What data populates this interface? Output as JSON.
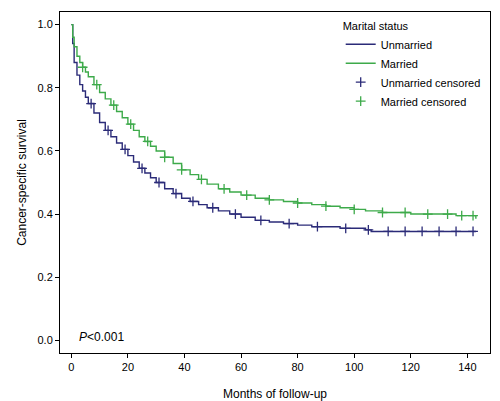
{
  "chart_data": {
    "type": "line",
    "x_label": "Months of follow-up",
    "y_label": "Cancer-specific survival",
    "legend_title": "Marital status",
    "legend": "top right",
    "grid": false,
    "xlim": [
      -4,
      148
    ],
    "xticks": [
      0,
      20,
      40,
      60,
      80,
      100,
      120,
      140
    ],
    "ylim": [
      -0.04,
      1.04
    ],
    "yticks": [
      {
        "value": 0,
        "label": "0.0"
      },
      0.2,
      0.4,
      0.6,
      0.8,
      {
        "value": 1,
        "label": "1.0"
      }
    ],
    "annotations": [
      {
        "text": "P<0.001"
      }
    ],
    "series": [
      {
        "name": "Unmarried",
        "type": "line",
        "line_style": "step",
        "color": "#2b2b78",
        "x": [
          0,
          0.5,
          1,
          2,
          3,
          4,
          5,
          6,
          8,
          10,
          12,
          14,
          16,
          18,
          20,
          22,
          24,
          26,
          28,
          30,
          33,
          36,
          39,
          42,
          45,
          48,
          52,
          56,
          60,
          65,
          70,
          75,
          80,
          85,
          90,
          95,
          100,
          104,
          106,
          110,
          120,
          130,
          143
        ],
        "values": [
          1.0,
          0.94,
          0.88,
          0.84,
          0.81,
          0.79,
          0.77,
          0.75,
          0.72,
          0.69,
          0.665,
          0.645,
          0.625,
          0.605,
          0.585,
          0.565,
          0.545,
          0.53,
          0.515,
          0.5,
          0.48,
          0.465,
          0.45,
          0.44,
          0.43,
          0.42,
          0.41,
          0.4,
          0.39,
          0.38,
          0.375,
          0.37,
          0.365,
          0.36,
          0.36,
          0.355,
          0.355,
          0.35,
          0.345,
          0.345,
          0.345,
          0.345,
          0.345
        ]
      },
      {
        "name": "Married",
        "type": "line",
        "line_style": "step",
        "color": "#3daa4a",
        "x": [
          0,
          0.5,
          1,
          2,
          3,
          4,
          5,
          6,
          8,
          10,
          12,
          14,
          16,
          18,
          20,
          22,
          24,
          26,
          28,
          30,
          33,
          36,
          39,
          42,
          45,
          48,
          52,
          56,
          60,
          65,
          70,
          75,
          80,
          85,
          90,
          95,
          100,
          104,
          106,
          110,
          120,
          136,
          143
        ],
        "values": [
          1.0,
          0.96,
          0.93,
          0.9,
          0.88,
          0.865,
          0.85,
          0.835,
          0.81,
          0.785,
          0.765,
          0.745,
          0.725,
          0.705,
          0.685,
          0.665,
          0.645,
          0.63,
          0.615,
          0.6,
          0.58,
          0.56,
          0.54,
          0.525,
          0.51,
          0.495,
          0.48,
          0.47,
          0.46,
          0.45,
          0.445,
          0.44,
          0.435,
          0.43,
          0.425,
          0.42,
          0.415,
          0.41,
          0.41,
          0.405,
          0.4,
          0.395,
          0.385
        ]
      },
      {
        "name": "Unmarried censored",
        "type": "scatter",
        "marker": "cross",
        "color": "#2b2b78",
        "x": [
          7,
          13,
          19,
          25,
          31,
          37,
          43,
          50,
          58,
          67,
          77,
          87,
          97,
          105,
          112,
          118,
          124,
          130,
          136,
          142
        ],
        "values": [
          0.75,
          0.665,
          0.605,
          0.545,
          0.5,
          0.465,
          0.44,
          0.42,
          0.4,
          0.38,
          0.37,
          0.36,
          0.355,
          0.35,
          0.345,
          0.345,
          0.345,
          0.345,
          0.345,
          0.345
        ]
      },
      {
        "name": "Married censored",
        "type": "scatter",
        "marker": "cross",
        "color": "#3daa4a",
        "x": [
          4,
          9,
          15,
          21,
          27,
          33,
          39,
          46,
          54,
          62,
          70,
          80,
          90,
          100,
          110,
          118,
          126,
          133,
          138,
          142
        ],
        "values": [
          0.865,
          0.81,
          0.745,
          0.685,
          0.63,
          0.58,
          0.54,
          0.51,
          0.48,
          0.46,
          0.445,
          0.435,
          0.425,
          0.415,
          0.405,
          0.405,
          0.4,
          0.4,
          0.395,
          0.395
        ]
      }
    ]
  }
}
